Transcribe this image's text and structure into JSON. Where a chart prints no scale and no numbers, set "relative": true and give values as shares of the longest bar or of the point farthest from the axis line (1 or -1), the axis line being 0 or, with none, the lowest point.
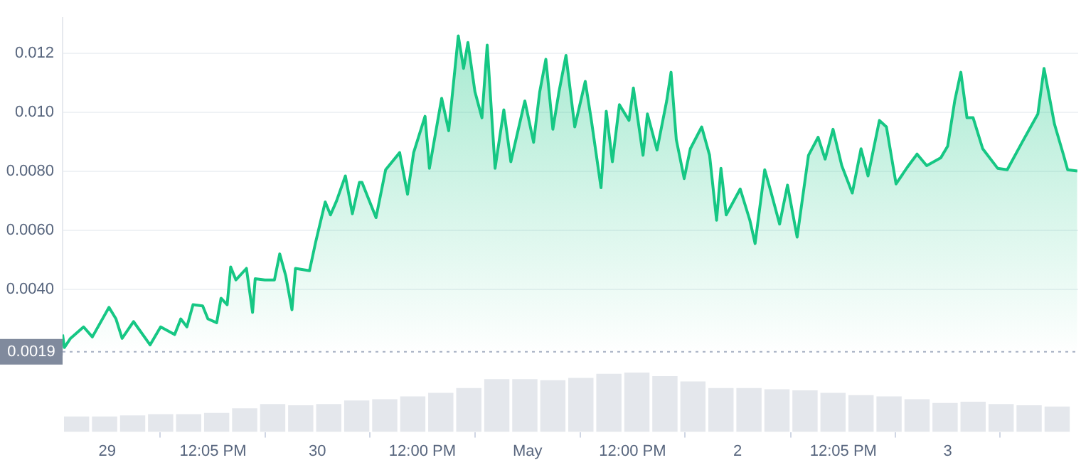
{
  "chart_data": [
    {
      "type": "area",
      "x": [
        "--04-28T18:54",
        "--04-28T19:06",
        "--04-28T19:48",
        "--04-28T21:18",
        "--04-28T22:18",
        "--04-29T00:12",
        "--04-29T01:00",
        "--04-29T01:42",
        "--04-29T03:00",
        "--04-29T04:54",
        "--04-29T06:06",
        "--04-29T07:42",
        "--04-29T08:24",
        "--04-29T09:06",
        "--04-29T09:48",
        "--04-29T10:54",
        "--04-29T11:30",
        "--04-29T12:30",
        "--04-29T13:00",
        "--04-29T13:42",
        "--04-29T14:06",
        "--04-29T14:42",
        "--04-29T15:54",
        "--04-29T16:36",
        "--04-29T16:54",
        "--04-29T18:00",
        "--04-29T19:06",
        "--04-29T19:42",
        "--04-29T20:24",
        "--04-29T21:06",
        "--04-29T21:30",
        "--04-29T23:06",
        "--04-29T23:48",
        "--04-30T00:54",
        "--04-30T01:30",
        "--04-30T02:12",
        "--04-30T03:12",
        "--04-30T04:00",
        "--04-30T04:48",
        "--04-30T05:06",
        "--04-30T06:42",
        "--04-30T07:48",
        "--04-30T09:24",
        "--04-30T10:18",
        "--04-30T11:00",
        "--04-30T12:18",
        "--04-30T12:48",
        "--04-30T14:12",
        "--04-30T15:00",
        "--04-30T16:06",
        "--04-30T16:42",
        "--04-30T17:12",
        "--04-30T18:00",
        "--04-30T18:48",
        "--04-30T19:24",
        "--04-30T20:18",
        "--04-30T21:18",
        "--04-30T22:06",
        "--04-30T23:42",
        "--05-01T00:42",
        "--05-01T01:24",
        "--05-01T02:06",
        "--05-01T02:54",
        "--05-01T03:36",
        "--05-01T04:24",
        "--05-01T05:24",
        "--05-01T06:36",
        "--05-01T07:18",
        "--05-01T08:24",
        "--05-01T09:00",
        "--05-01T09:42",
        "--05-01T10:30",
        "--05-01T11:36",
        "--05-01T12:06",
        "--05-01T13:12",
        "--05-01T13:42",
        "--05-01T14:48",
        "--05-01T15:54",
        "--05-01T16:24",
        "--05-01T17:00",
        "--05-01T17:54",
        "--05-01T18:36",
        "--05-01T19:54",
        "--05-01T20:48",
        "--05-01T21:36",
        "--05-01T22:06",
        "--05-01T22:42",
        "--05-02T00:18",
        "--05-02T01:24",
        "--05-02T02:00",
        "--05-02T03:06",
        "--05-02T03:48",
        "--05-02T04:48",
        "--05-02T05:42",
        "--05-02T06:48",
        "--05-02T08:06",
        "--05-02T09:12",
        "--05-02T10:00",
        "--05-02T10:54",
        "--05-02T11:54",
        "--05-02T13:06",
        "--05-02T14:06",
        "--05-02T14:54",
        "--05-02T16:12",
        "--05-02T17:00",
        "--05-02T18:06",
        "--05-02T19:24",
        "--05-02T20:30",
        "--05-02T21:36",
        "--05-02T23:12",
        "--05-03T00:00",
        "--05-03T00:48",
        "--05-03T01:30",
        "--05-03T02:12",
        "--05-03T02:54",
        "--05-03T04:00",
        "--05-03T05:42",
        "--05-03T06:48",
        "--05-03T08:30",
        "--05-03T10:18",
        "--05-03T11:00",
        "--05-03T12:12",
        "--05-03T13:12",
        "--05-03T13:42",
        "--05-03T14:48"
      ],
      "series": [
        {
          "color": "#16c784",
          "values": [
            0.00248,
            0.00204,
            0.00235,
            0.00274,
            0.0024,
            0.0034,
            0.00301,
            0.00235,
            0.00292,
            0.00213,
            0.00274,
            0.00248,
            0.00301,
            0.00274,
            0.00349,
            0.00345,
            0.00301,
            0.00288,
            0.00371,
            0.00349,
            0.00477,
            0.00433,
            0.00472,
            0.00323,
            0.00437,
            0.00433,
            0.00433,
            0.00521,
            0.00446,
            0.00332,
            0.00472,
            0.00464,
            0.0056,
            0.00697,
            0.00653,
            0.00701,
            0.00785,
            0.00657,
            0.00763,
            0.00763,
            0.00644,
            0.00806,
            0.00864,
            0.00723,
            0.00864,
            0.00987,
            0.00811,
            0.01048,
            0.00938,
            0.01259,
            0.01149,
            0.01237,
            0.0107,
            0.00982,
            0.01228,
            0.00811,
            0.01009,
            0.00833,
            0.01039,
            0.00899,
            0.0107,
            0.0118,
            0.00943,
            0.0107,
            0.01193,
            0.00951,
            0.01105,
            0.00973,
            0.00745,
            0.01004,
            0.00833,
            0.01026,
            0.00973,
            0.01083,
            0.00855,
            0.00995,
            0.00873,
            0.01039,
            0.01136,
            0.00908,
            0.00776,
            0.00877,
            0.00951,
            0.00855,
            0.00635,
            0.00811,
            0.00653,
            0.00741,
            0.00635,
            0.00556,
            0.00806,
            0.00732,
            0.00622,
            0.00754,
            0.00578,
            0.00855,
            0.00916,
            0.00842,
            0.00943,
            0.0082,
            0.00727,
            0.00877,
            0.00785,
            0.00973,
            0.00951,
            0.00758,
            0.00815,
            0.00859,
            0.0082,
            0.00846,
            0.00886,
            0.01039,
            0.01136,
            0.00982,
            0.00982,
            0.00877,
            0.00811,
            0.00806,
            0.00899,
            0.00995,
            0.01149,
            0.0096,
            0.00859,
            0.00806,
            0.00802
          ]
        }
      ],
      "xlim": [
        "--04-28T18:54",
        "--05-03T14:54"
      ],
      "ylim": [
        0.0018,
        0.0132
      ],
      "yticks": [
        {
          "value": 0.004,
          "label": "0.0040"
        },
        {
          "value": 0.006,
          "label": "0.0060"
        },
        {
          "value": 0.008,
          "label": "0.0080"
        },
        {
          "value": 0.01,
          "label": "0.010"
        },
        {
          "value": 0.012,
          "label": "0.012"
        }
      ],
      "ref_lines": [
        {
          "axis": "y",
          "value": 0.0019,
          "label": "0.0019",
          "color": "#a6b0c3",
          "line_style": "dotted"
        }
      ],
      "grid": "y",
      "tick_labels": "y",
      "marker": "none"
    },
    {
      "type": "bar",
      "relative": true,
      "x": [
        "--04-28T20:30",
        "--04-28T23:42",
        "--04-29T02:54",
        "--04-29T06:06",
        "--04-29T09:18",
        "--04-29T12:30",
        "--04-29T15:42",
        "--04-29T18:54",
        "--04-29T22:06",
        "--04-30T01:18",
        "--04-30T04:30",
        "--04-30T07:42",
        "--04-30T10:54",
        "--04-30T14:06",
        "--04-30T17:18",
        "--04-30T20:30",
        "--04-30T23:42",
        "--05-01T02:54",
        "--05-01T06:06",
        "--05-01T09:18",
        "--05-01T12:30",
        "--05-01T15:42",
        "--05-01T18:54",
        "--05-01T22:06",
        "--05-02T01:18",
        "--05-02T04:30",
        "--05-02T07:42",
        "--05-02T10:54",
        "--05-02T14:06",
        "--05-02T17:18",
        "--05-02T20:30",
        "--05-02T23:42",
        "--05-03T02:54",
        "--05-03T06:06",
        "--05-03T09:18",
        "--05-03T12:30"
      ],
      "values": [
        0.26,
        0.26,
        0.28,
        0.3,
        0.3,
        0.32,
        0.4,
        0.47,
        0.45,
        0.47,
        0.53,
        0.55,
        0.6,
        0.66,
        0.74,
        0.89,
        0.89,
        0.87,
        0.91,
        0.98,
        1,
        0.94,
        0.85,
        0.74,
        0.74,
        0.72,
        0.7,
        0.66,
        0.62,
        0.6,
        0.55,
        0.49,
        0.51,
        0.47,
        0.45,
        0.43
      ],
      "color": "#e4e7ec",
      "xlim": [
        "--04-28T18:54",
        "--05-03T14:54"
      ],
      "xticks": [
        {
          "value": "--04-29",
          "label": "29"
        },
        {
          "value": "--04-29T12:05",
          "label": "12:05 PM"
        },
        {
          "value": "--04-30",
          "label": "30"
        },
        {
          "value": "--04-30T12:00",
          "label": "12:00 PM"
        },
        {
          "value": "--05-01",
          "label": "May"
        },
        {
          "value": "--05-01T12:00",
          "label": "12:00 PM"
        },
        {
          "value": "--05-02",
          "label": "2"
        },
        {
          "value": "--05-02T12:05",
          "label": "12:05 PM"
        },
        {
          "value": "--05-03",
          "label": "3"
        }
      ],
      "tick_labels": "x",
      "grid": false
    }
  ]
}
